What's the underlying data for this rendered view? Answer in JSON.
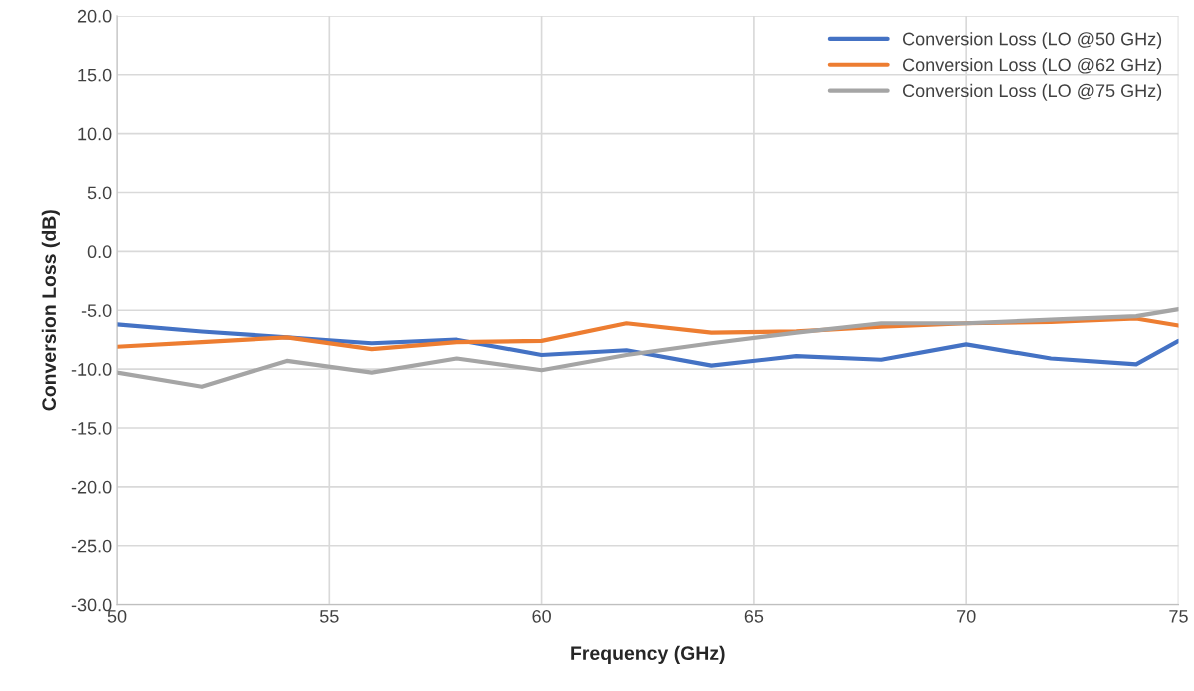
{
  "chart_data": {
    "type": "line",
    "xlabel": "Frequency (GHz)",
    "ylabel": "Conversion Loss (dB)",
    "x": [
      50,
      52,
      54,
      56,
      58,
      60,
      62,
      64,
      66,
      68,
      70,
      72,
      74,
      75
    ],
    "series": [
      {
        "name": "Conversion Loss (LO @50 GHz)",
        "color": "#4472c4",
        "values": [
          -6.2,
          -6.8,
          -7.3,
          -7.8,
          -7.5,
          -8.8,
          -8.4,
          -9.7,
          -8.9,
          -9.2,
          -7.9,
          -9.1,
          -9.6,
          -7.6
        ]
      },
      {
        "name": "Conversion Loss (LO @62 GHz)",
        "color": "#ed7d31",
        "values": [
          -8.1,
          -7.7,
          -7.3,
          -8.3,
          -7.7,
          -7.6,
          -6.1,
          -6.9,
          -6.8,
          -6.4,
          -6.1,
          -6.0,
          -5.7,
          -6.3
        ]
      },
      {
        "name": "Conversion Loss (LO @75 GHz)",
        "color": "#a5a5a5",
        "values": [
          -10.3,
          -11.5,
          -9.3,
          -10.3,
          -9.1,
          -10.1,
          -8.8,
          -7.8,
          -6.9,
          -6.1,
          -6.1,
          -5.8,
          -5.5,
          -4.9
        ]
      }
    ],
    "xlim": [
      50,
      75
    ],
    "xticks": [
      50,
      55,
      60,
      65,
      70,
      75
    ],
    "ylim": [
      -30,
      20
    ],
    "yticks": [
      {
        "value": -30,
        "label": "-30.0"
      },
      {
        "value": -25,
        "label": "-25.0"
      },
      {
        "value": -20,
        "label": "-20.0"
      },
      {
        "value": -15,
        "label": "-15.0"
      },
      {
        "value": -10,
        "label": "-10.0"
      },
      {
        "value": -5,
        "label": "-5.0"
      },
      {
        "value": 0,
        "label": "0.0"
      },
      {
        "value": 5,
        "label": "5.0"
      },
      {
        "value": 10,
        "label": "10.0"
      },
      {
        "value": 15,
        "label": "15.0"
      },
      {
        "value": 20,
        "label": "20.0"
      }
    ],
    "grid": true,
    "legend": "top right"
  }
}
